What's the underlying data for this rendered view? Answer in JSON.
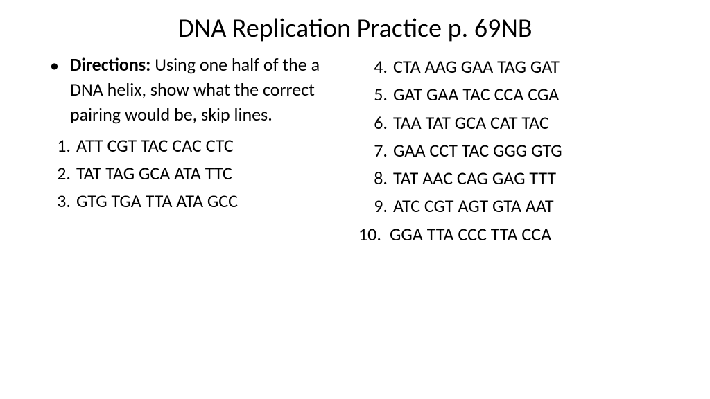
{
  "title": "DNA Replication Practice p. 69NB",
  "directions": {
    "label": "Directions:",
    "text": "  Using one half of the a DNA helix, show what the correct pairing would be, skip lines."
  },
  "left_items": [
    {
      "num": "1.",
      "text": "ATT CGT TAC CAC CTC"
    },
    {
      "num": "2.",
      "text": "TAT TAG GCA ATA TTC"
    },
    {
      "num": "3.",
      "text": "GTG TGA TTA ATA GCC"
    }
  ],
  "right_items": [
    {
      "num": "4.",
      "text": "CTA AAG GAA TAG GAT"
    },
    {
      "num": "5.",
      "text": "GAT GAA TAC CCA CGA"
    },
    {
      "num": "6.",
      "text": "TAA TAT GCA CAT TAC"
    },
    {
      "num": "7.",
      "text": "GAA CCT TAC GGG GTG"
    },
    {
      "num": "8.",
      "text": "TAT AAC CAG GAG TTT"
    },
    {
      "num": "9.",
      "text": "ATC CGT AGT GTA AAT"
    },
    {
      "num": "10.",
      "text": "GGA TTA CCC TTA CCA"
    }
  ]
}
